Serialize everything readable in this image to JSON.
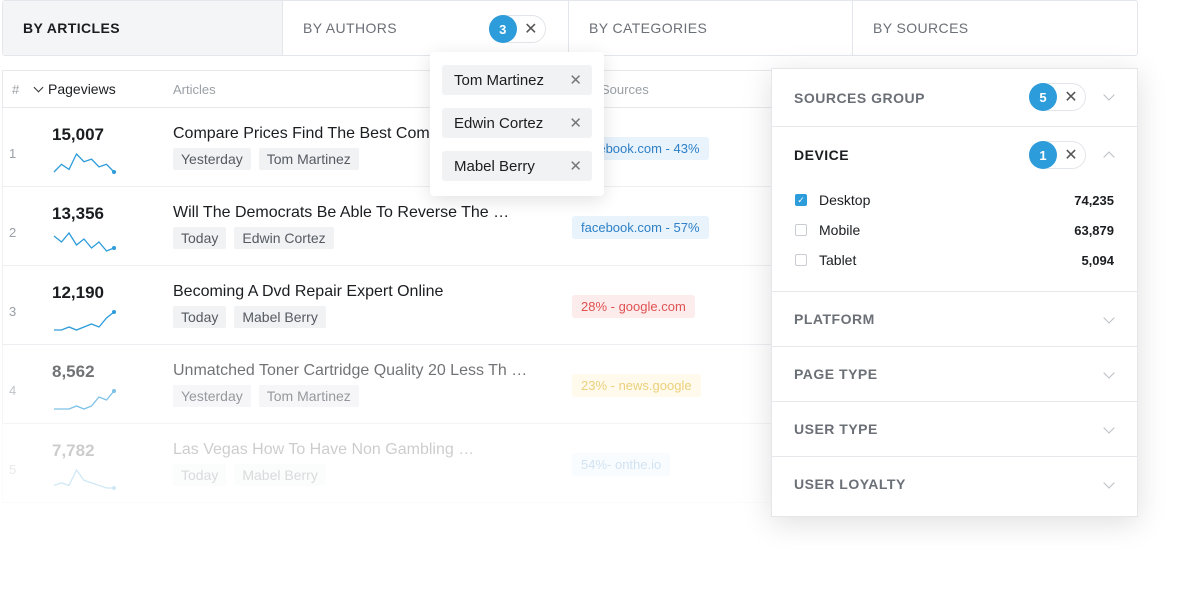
{
  "tabs": [
    {
      "label": "BY ARTICLES",
      "active": true
    },
    {
      "label": "BY AUTHORS",
      "count": "3"
    },
    {
      "label": "BY CATEGORIES"
    },
    {
      "label": "BY SOURCES"
    }
  ],
  "table": {
    "headers": {
      "num": "#",
      "pageviews": "Pageviews",
      "articles": "Articles",
      "sources": "Sources"
    },
    "rows": [
      {
        "idx": "1",
        "pageviews": "15,007",
        "title": "Compare Prices Find The Best Computer",
        "time": "Yesterday",
        "author": "Tom Martinez",
        "source": "facebook.com - 43%",
        "source_color": "blue",
        "spark": [
          2,
          5,
          3,
          9,
          6,
          7,
          4,
          5,
          2
        ]
      },
      {
        "idx": "2",
        "pageviews": "13,356",
        "title": "Will The Democrats Be Able To Reverse The …",
        "time": "Today",
        "author": "Edwin Cortez",
        "source": "facebook.com - 57%",
        "source_color": "blue",
        "spark": [
          8,
          6,
          9,
          5,
          7,
          4,
          6,
          3,
          4
        ]
      },
      {
        "idx": "3",
        "pageviews": "12,190",
        "title": "Becoming A Dvd Repair Expert Online",
        "time": "Today",
        "author": "Mabel Berry",
        "source": "28% - google.com",
        "source_color": "red",
        "spark": [
          1,
          1,
          2,
          1,
          2,
          3,
          2,
          5,
          7
        ]
      },
      {
        "idx": "4",
        "pageviews": "8,562",
        "title": "Unmatched Toner Cartridge Quality 20 Less Th …",
        "time": "Yesterday",
        "author": "Tom Martinez",
        "source": "23% - news.google",
        "source_color": "yellow",
        "spark": [
          1,
          1,
          1,
          2,
          1,
          2,
          5,
          4,
          7
        ]
      },
      {
        "idx": "5",
        "pageviews": "7,782",
        "title": "Las Vegas How To Have Non Gambling …",
        "time": "Today",
        "author": "Mabel Berry",
        "source": "54%- onthe.io",
        "source_color": "blue",
        "spark": [
          2,
          3,
          2,
          8,
          4,
          3,
          2,
          1,
          1
        ]
      }
    ]
  },
  "author_dropdown": {
    "items": [
      "Tom Martinez",
      "Edwin Cortez",
      "Mabel Berry"
    ]
  },
  "panel": {
    "sections": [
      {
        "label": "SOURCES GROUP",
        "count": "5"
      },
      {
        "label": "DEVICE",
        "count": "1",
        "open": true
      },
      {
        "label": "PLATFORM"
      },
      {
        "label": "PAGE TYPE"
      },
      {
        "label": "USER TYPE"
      },
      {
        "label": "USER LOYALTY"
      }
    ],
    "devices": [
      {
        "label": "Desktop",
        "value": "74,235",
        "checked": true
      },
      {
        "label": "Mobile",
        "value": "63,879",
        "checked": false
      },
      {
        "label": "Tablet",
        "value": "5,094",
        "checked": false
      }
    ]
  },
  "colors": {
    "accent": "#2d9cdb",
    "spark": "#2d9cdb"
  }
}
